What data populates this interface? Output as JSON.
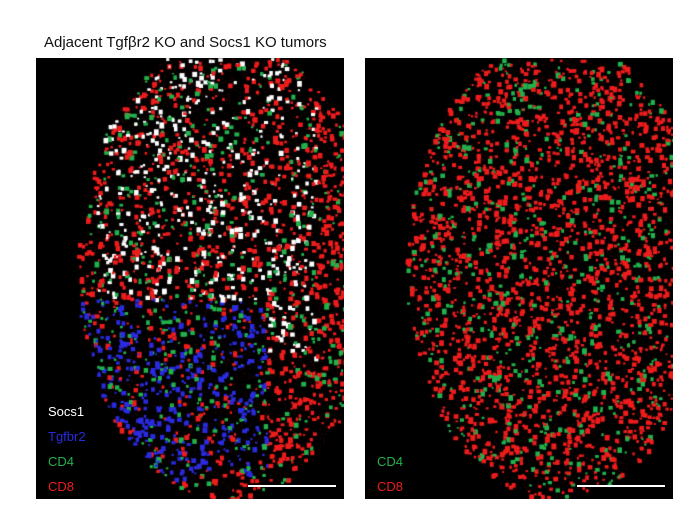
{
  "title": "Adjacent Tgfβr2 KO and Socs1 KO tumors",
  "colors": {
    "Socs1": "#ffffff",
    "Tgfbr2": "#2a2ae0",
    "CD4": "#22b14c",
    "CD8": "#ee1c1c"
  },
  "panels": [
    {
      "labels": [
        {
          "text": "Socs1",
          "color": "#ffffff"
        },
        {
          "text": "Tgfbr2",
          "color": "#2a2ae0"
        },
        {
          "text": "CD4",
          "color": "#22b14c"
        },
        {
          "text": "CD8",
          "color": "#ee1c1c"
        }
      ]
    },
    {
      "labels": [
        {
          "text": "CD4",
          "color": "#22b14c"
        },
        {
          "text": "CD8",
          "color": "#ee1c1c"
        }
      ]
    }
  ]
}
